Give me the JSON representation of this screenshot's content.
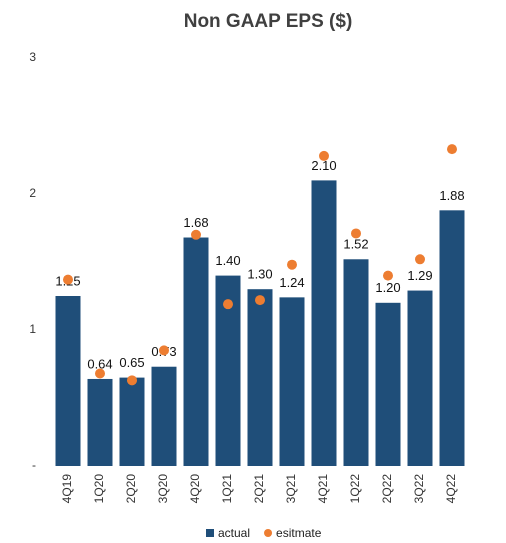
{
  "chart_data": {
    "type": "bar",
    "title": "Non GAAP EPS ($)",
    "categories": [
      "4Q19",
      "1Q20",
      "2Q20",
      "3Q20",
      "4Q20",
      "1Q21",
      "2Q21",
      "3Q21",
      "4Q21",
      "1Q22",
      "2Q22",
      "3Q22",
      "4Q22"
    ],
    "series": [
      {
        "name": "actual",
        "type": "bar",
        "color": "#1f4e79",
        "values": [
          1.25,
          0.64,
          0.65,
          0.73,
          1.68,
          1.4,
          1.3,
          1.24,
          2.1,
          1.52,
          1.2,
          1.29,
          1.88
        ],
        "value_labels": [
          "1.25",
          "0.64",
          "0.65",
          "0.73",
          "1.68",
          "1.40",
          "1.30",
          "1.24",
          "2.10",
          "1.52",
          "1.20",
          "1.29",
          "1.88"
        ]
      },
      {
        "name": "esitmate",
        "type": "scatter",
        "color": "#ed7d31",
        "values": [
          1.37,
          0.68,
          0.63,
          0.85,
          1.7,
          1.19,
          1.22,
          1.48,
          2.28,
          1.71,
          1.4,
          1.52,
          2.33
        ]
      }
    ],
    "ylim": [
      0,
      3
    ],
    "yticks": [
      {
        "value": 0,
        "label": "-"
      },
      1,
      2,
      3
    ],
    "legend": "bottom"
  }
}
